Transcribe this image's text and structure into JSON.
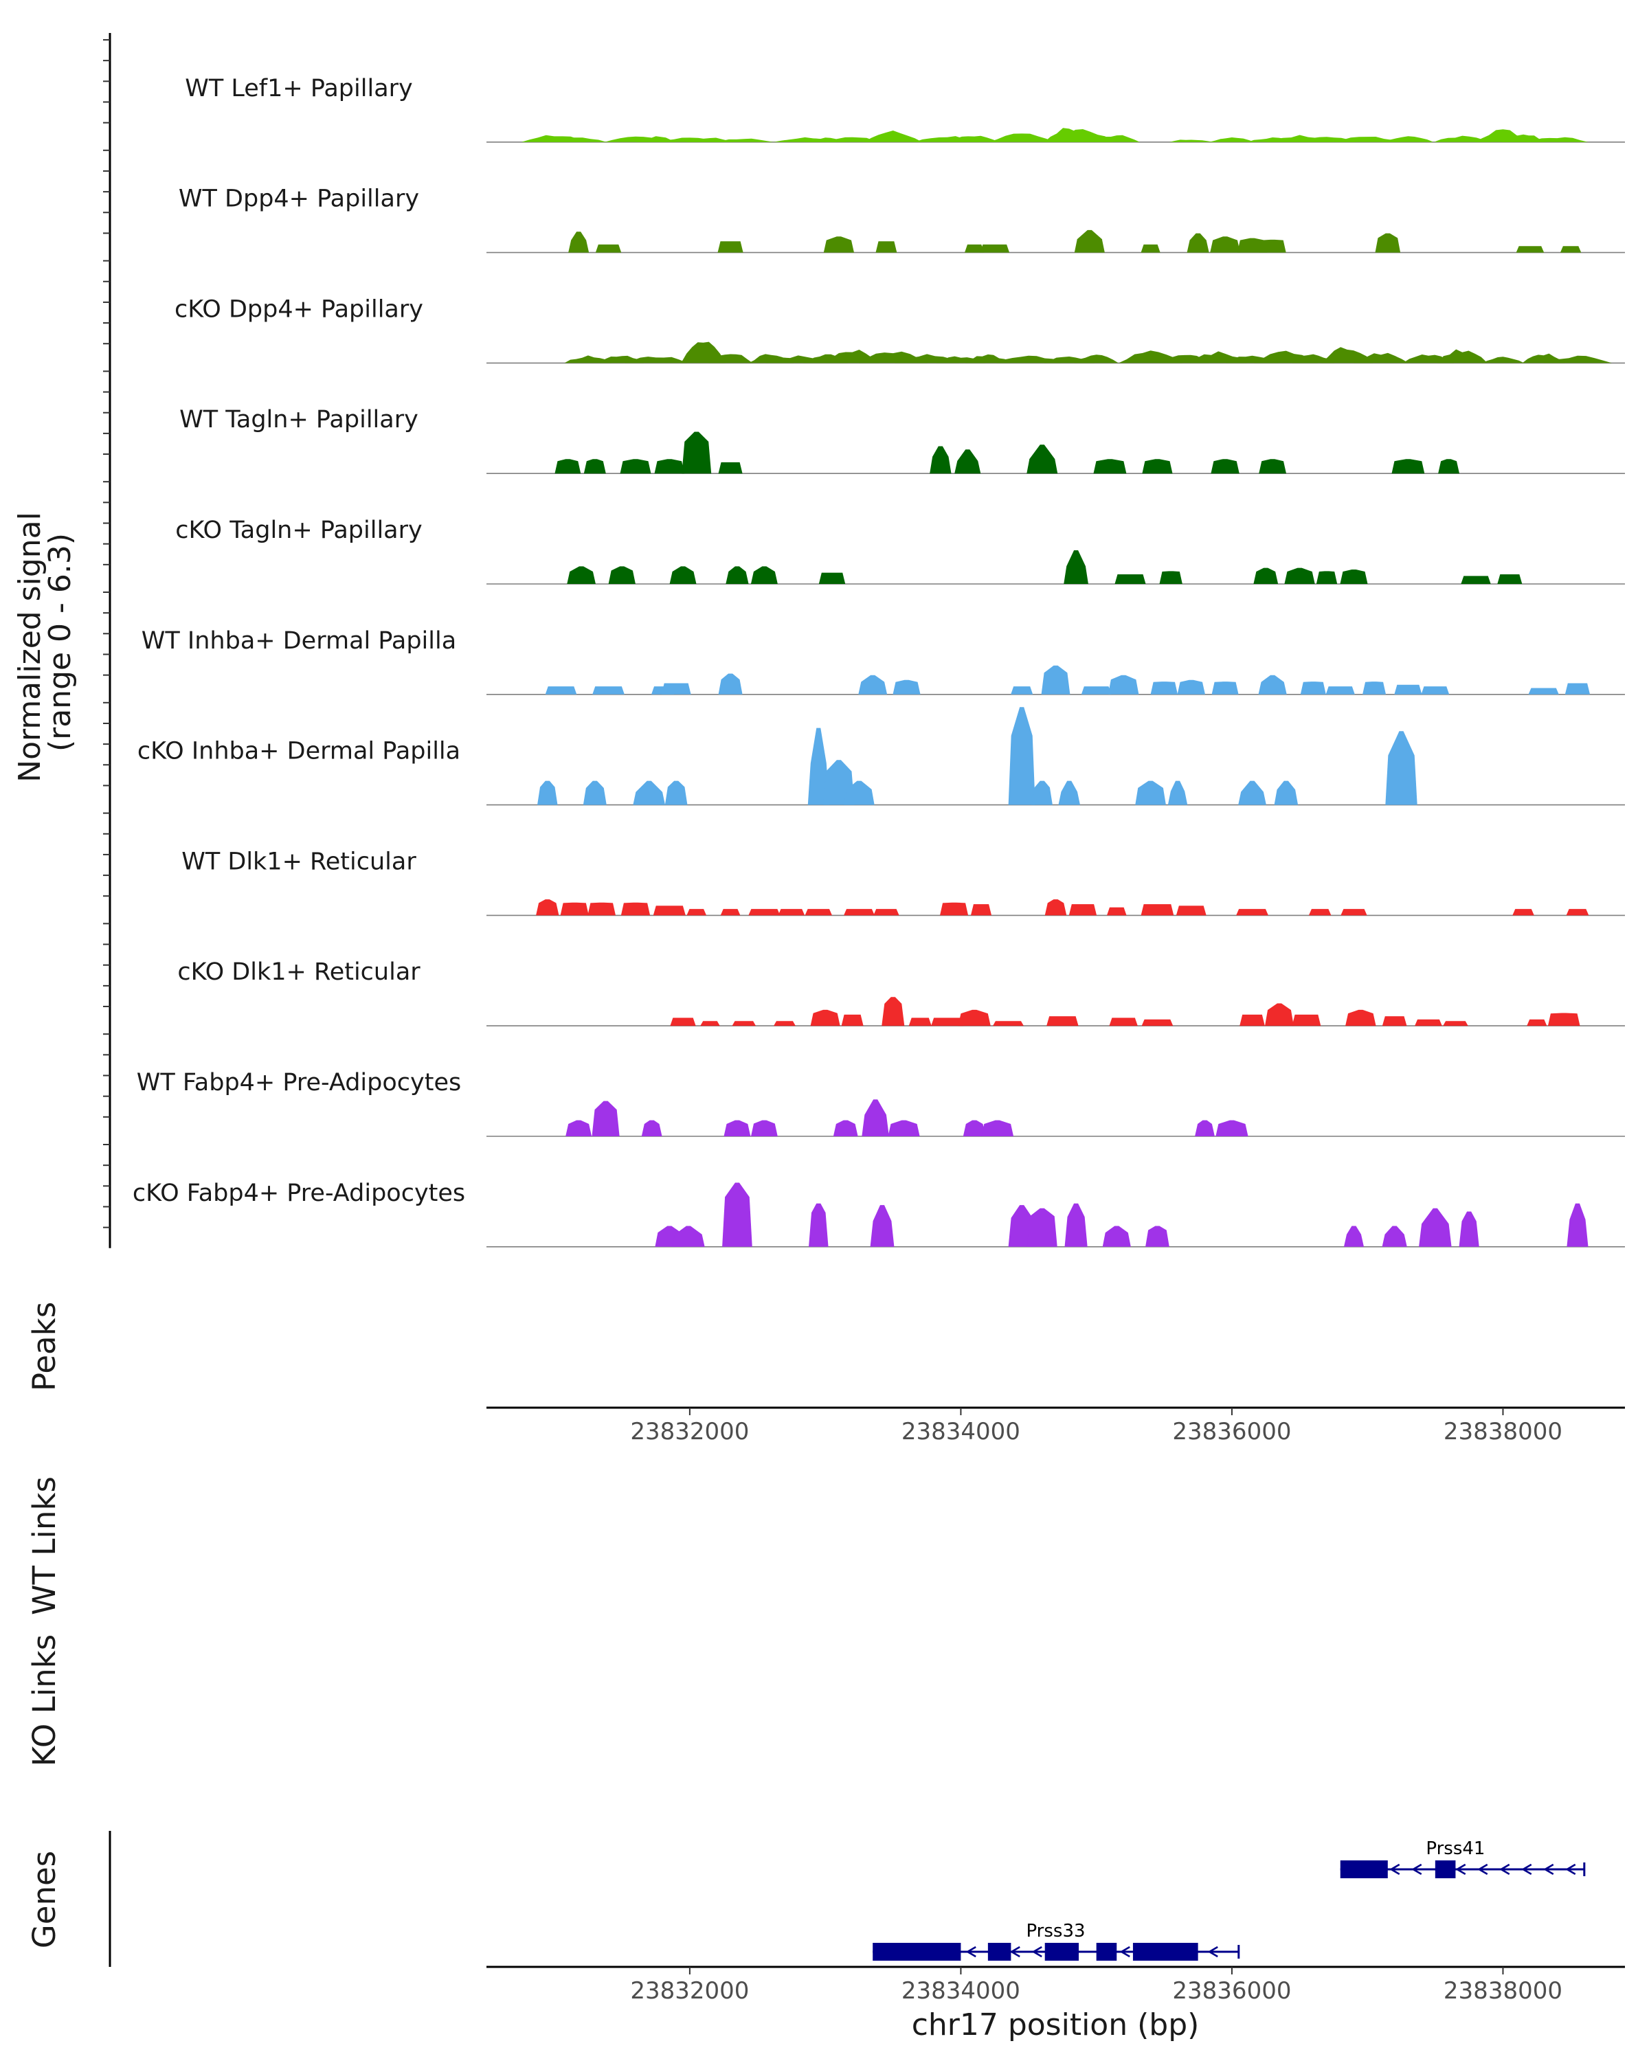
{
  "chart_data": {
    "type": "area",
    "title": "",
    "chromosome": "chr17",
    "xlabel": "chr17 position (bp)",
    "ylabel_line1": "Normalized signal",
    "ylabel_line2": "(range 0 - 6.3)",
    "y_range": [
      0,
      6.3
    ],
    "xlim": [
      23830500,
      23838900
    ],
    "region_start": 23830900,
    "region_end": 23838600,
    "x_ticks": [
      23832000,
      23834000,
      23836000,
      23838000
    ],
    "x_tick_labels": [
      "23832000",
      "23834000",
      "23836000",
      "23838000"
    ],
    "tracks": [
      {
        "name": "WT Lef1+ Papillary",
        "color": "#66cc00",
        "mode": "smooth",
        "seed": 11,
        "peaks": [
          [
            23831000,
            0.5
          ],
          [
            23831150,
            0.35
          ],
          [
            23831600,
            0.4
          ],
          [
            23831750,
            0.4
          ],
          [
            23832000,
            0.3
          ],
          [
            23832150,
            0.3
          ],
          [
            23832400,
            0.25
          ],
          [
            23832850,
            0.3
          ],
          [
            23833000,
            0.3
          ],
          [
            23833200,
            0.35
          ],
          [
            23833500,
            0.8
          ],
          [
            23833900,
            0.4
          ],
          [
            23834100,
            0.5
          ],
          [
            23834450,
            0.6
          ],
          [
            23834800,
            1.0
          ],
          [
            23834900,
            0.9
          ],
          [
            23835150,
            0.5
          ],
          [
            23835700,
            0.2
          ],
          [
            23836000,
            0.3
          ],
          [
            23836300,
            0.3
          ],
          [
            23836500,
            0.45
          ],
          [
            23836700,
            0.4
          ],
          [
            23837000,
            0.4
          ],
          [
            23837300,
            0.45
          ],
          [
            23837700,
            0.4
          ],
          [
            23838000,
            0.8
          ],
          [
            23838150,
            0.6
          ],
          [
            23838400,
            0.35
          ]
        ]
      },
      {
        "name": "WT Dpp4+ Papillary",
        "color": "#4d8c00",
        "mode": "block",
        "seed": 22,
        "peaks": [
          [
            23831180,
            1.3
          ],
          [
            23831400,
            0.5
          ],
          [
            23832300,
            0.7
          ],
          [
            23833100,
            1.0
          ],
          [
            23833450,
            0.7
          ],
          [
            23834100,
            0.5
          ],
          [
            23834250,
            0.5
          ],
          [
            23834950,
            1.4
          ],
          [
            23835400,
            0.5
          ],
          [
            23835750,
            1.2
          ],
          [
            23835950,
            1.0
          ],
          [
            23836150,
            0.9
          ],
          [
            23836300,
            0.8
          ],
          [
            23837150,
            1.2
          ],
          [
            23838200,
            0.4
          ],
          [
            23838500,
            0.4
          ]
        ]
      },
      {
        "name": "cKO Dpp4+ Papillary",
        "color": "#4d8c00",
        "mode": "smooth",
        "seed": 33,
        "peaks": [
          [
            23831250,
            0.5
          ],
          [
            23831500,
            0.6
          ],
          [
            23831750,
            0.5
          ],
          [
            23832100,
            1.5
          ],
          [
            23832300,
            0.7
          ],
          [
            23832600,
            0.6
          ],
          [
            23832800,
            0.5
          ],
          [
            23833000,
            0.6
          ],
          [
            23833200,
            0.9
          ],
          [
            23833500,
            0.8
          ],
          [
            23833750,
            0.6
          ],
          [
            23834000,
            0.5
          ],
          [
            23834200,
            0.6
          ],
          [
            23834500,
            0.6
          ],
          [
            23834800,
            0.5
          ],
          [
            23835000,
            0.6
          ],
          [
            23835400,
            0.8
          ],
          [
            23835650,
            0.7
          ],
          [
            23835900,
            0.8
          ],
          [
            23836150,
            0.6
          ],
          [
            23836400,
            0.8
          ],
          [
            23836600,
            0.6
          ],
          [
            23836850,
            1.2
          ],
          [
            23837100,
            0.7
          ],
          [
            23837450,
            0.6
          ],
          [
            23837700,
            1.0
          ],
          [
            23838000,
            0.4
          ],
          [
            23838300,
            0.7
          ],
          [
            23838550,
            0.5
          ]
        ]
      },
      {
        "name": "WT Tagln+ Papillary",
        "color": "#006400",
        "mode": "block",
        "seed": 44,
        "peaks": [
          [
            23831100,
            0.9
          ],
          [
            23831300,
            0.9
          ],
          [
            23831600,
            0.9
          ],
          [
            23831850,
            0.9
          ],
          [
            23832050,
            2.6
          ],
          [
            23832300,
            0.7
          ],
          [
            23833850,
            1.7
          ],
          [
            23834050,
            1.5
          ],
          [
            23834600,
            1.8
          ],
          [
            23835100,
            0.9
          ],
          [
            23835450,
            0.9
          ],
          [
            23835950,
            0.9
          ],
          [
            23836300,
            0.9
          ],
          [
            23837300,
            0.9
          ],
          [
            23837600,
            0.9
          ]
        ]
      },
      {
        "name": "cKO Tagln+ Papillary",
        "color": "#006400",
        "mode": "block",
        "seed": 55,
        "peaks": [
          [
            23831200,
            1.1
          ],
          [
            23831500,
            1.1
          ],
          [
            23831950,
            1.1
          ],
          [
            23832350,
            1.1
          ],
          [
            23832550,
            1.1
          ],
          [
            23833050,
            0.7
          ],
          [
            23834850,
            2.1
          ],
          [
            23835250,
            0.6
          ],
          [
            23835550,
            0.8
          ],
          [
            23836250,
            1.0
          ],
          [
            23836500,
            1.0
          ],
          [
            23836700,
            0.8
          ],
          [
            23836900,
            0.9
          ],
          [
            23837800,
            0.5
          ],
          [
            23838050,
            0.6
          ]
        ]
      },
      {
        "name": "WT Inhba+ Dermal Papilla",
        "color": "#5aabe8",
        "mode": "block",
        "seed": 66,
        "peaks": [
          [
            23831050,
            0.5
          ],
          [
            23831400,
            0.5
          ],
          [
            23831800,
            0.5
          ],
          [
            23831900,
            0.7
          ],
          [
            23832300,
            1.3
          ],
          [
            23833350,
            1.2
          ],
          [
            23833600,
            0.9
          ],
          [
            23834450,
            0.5
          ],
          [
            23834700,
            1.8
          ],
          [
            23835000,
            0.5
          ],
          [
            23835200,
            1.2
          ],
          [
            23835500,
            0.8
          ],
          [
            23835700,
            0.9
          ],
          [
            23835950,
            0.8
          ],
          [
            23836300,
            1.2
          ],
          [
            23836600,
            0.8
          ],
          [
            23836800,
            0.5
          ],
          [
            23837050,
            0.8
          ],
          [
            23837300,
            0.6
          ],
          [
            23837500,
            0.5
          ],
          [
            23838300,
            0.4
          ],
          [
            23838550,
            0.7
          ]
        ]
      },
      {
        "name": "cKO Inhba+ Dermal Papilla",
        "color": "#5aabe8",
        "mode": "block",
        "seed": 77,
        "peaks": [
          [
            23830950,
            1.5
          ],
          [
            23831300,
            1.5
          ],
          [
            23831700,
            1.5
          ],
          [
            23831900,
            1.5
          ],
          [
            23832950,
            4.8
          ],
          [
            23833100,
            2.8
          ],
          [
            23833250,
            1.5
          ],
          [
            23834450,
            6.1
          ],
          [
            23834600,
            1.5
          ],
          [
            23834800,
            1.5
          ],
          [
            23835400,
            1.5
          ],
          [
            23835600,
            1.5
          ],
          [
            23836150,
            1.5
          ],
          [
            23836400,
            1.5
          ],
          [
            23837250,
            4.6
          ]
        ]
      },
      {
        "name": "WT Dlk1+ Reticular",
        "color": "#f02a2a",
        "mode": "block",
        "seed": 88,
        "peaks": [
          [
            23830950,
            1.0
          ],
          [
            23831150,
            0.8
          ],
          [
            23831350,
            0.8
          ],
          [
            23831600,
            0.8
          ],
          [
            23831850,
            0.6
          ],
          [
            23832050,
            0.4
          ],
          [
            23832300,
            0.4
          ],
          [
            23832550,
            0.4
          ],
          [
            23832750,
            0.4
          ],
          [
            23832950,
            0.4
          ],
          [
            23833250,
            0.4
          ],
          [
            23833450,
            0.4
          ],
          [
            23833950,
            0.8
          ],
          [
            23834150,
            0.7
          ],
          [
            23834700,
            1.0
          ],
          [
            23834900,
            0.7
          ],
          [
            23835150,
            0.5
          ],
          [
            23835450,
            0.7
          ],
          [
            23835700,
            0.6
          ],
          [
            23836150,
            0.4
          ],
          [
            23836650,
            0.4
          ],
          [
            23836900,
            0.4
          ],
          [
            23838150,
            0.4
          ],
          [
            23838550,
            0.4
          ]
        ]
      },
      {
        "name": "cKO Dlk1+ Reticular",
        "color": "#f02a2a",
        "mode": "block",
        "seed": 99,
        "peaks": [
          [
            23831950,
            0.5
          ],
          [
            23832150,
            0.3
          ],
          [
            23832400,
            0.3
          ],
          [
            23832700,
            0.3
          ],
          [
            23833000,
            1.0
          ],
          [
            23833200,
            0.7
          ],
          [
            23833500,
            1.8
          ],
          [
            23833700,
            0.5
          ],
          [
            23833900,
            0.5
          ],
          [
            23834100,
            1.0
          ],
          [
            23834350,
            0.3
          ],
          [
            23834750,
            0.6
          ],
          [
            23835200,
            0.5
          ],
          [
            23835450,
            0.4
          ],
          [
            23836150,
            0.7
          ],
          [
            23836350,
            1.4
          ],
          [
            23836550,
            0.7
          ],
          [
            23836950,
            1.0
          ],
          [
            23837200,
            0.6
          ],
          [
            23837450,
            0.4
          ],
          [
            23837650,
            0.3
          ],
          [
            23838250,
            0.4
          ],
          [
            23838450,
            0.8
          ]
        ]
      },
      {
        "name": "WT Fabp4+ Pre-Adipocytes",
        "color": "#a033e8",
        "mode": "block",
        "seed": 111,
        "peaks": [
          [
            23831180,
            1.0
          ],
          [
            23831380,
            2.2
          ],
          [
            23831720,
            1.0
          ],
          [
            23832350,
            1.0
          ],
          [
            23832550,
            1.0
          ],
          [
            23833150,
            1.0
          ],
          [
            23833370,
            2.3
          ],
          [
            23833580,
            1.0
          ],
          [
            23834100,
            1.0
          ],
          [
            23834270,
            1.0
          ],
          [
            23835800,
            1.0
          ],
          [
            23836000,
            1.0
          ]
        ]
      },
      {
        "name": "cKO Fabp4+ Pre-Adipocytes",
        "color": "#a033e8",
        "mode": "block",
        "seed": 122,
        "peaks": [
          [
            23831850,
            1.3
          ],
          [
            23831990,
            1.3
          ],
          [
            23832350,
            4.0
          ],
          [
            23832950,
            2.7
          ],
          [
            23833420,
            2.6
          ],
          [
            23834450,
            2.6
          ],
          [
            23834600,
            2.4
          ],
          [
            23834850,
            2.7
          ],
          [
            23835150,
            1.3
          ],
          [
            23835450,
            1.3
          ],
          [
            23836900,
            1.3
          ],
          [
            23837200,
            1.3
          ],
          [
            23837500,
            2.4
          ],
          [
            23837750,
            2.2
          ],
          [
            23838550,
            2.7
          ]
        ]
      }
    ],
    "panels": {
      "peaks_label": "Peaks",
      "wt_links_label": "WT Links",
      "ko_links_label": "KO Links",
      "genes_label": "Genes"
    },
    "genes": [
      {
        "name": "Prss41",
        "color": "#00008b",
        "start": 23836800,
        "end": 23838600,
        "strand": "-",
        "row": 0,
        "exons": [
          [
            23836800,
            23837150
          ],
          [
            23837500,
            23837650
          ]
        ]
      },
      {
        "name": "Prss33",
        "color": "#00008b",
        "start": 23833350,
        "end": 23836050,
        "strand": "-",
        "row": 1,
        "exons": [
          [
            23833350,
            23834000
          ],
          [
            23834200,
            23834370
          ],
          [
            23834620,
            23834870
          ],
          [
            23835000,
            23835150
          ],
          [
            23835270,
            23835750
          ]
        ]
      }
    ]
  }
}
